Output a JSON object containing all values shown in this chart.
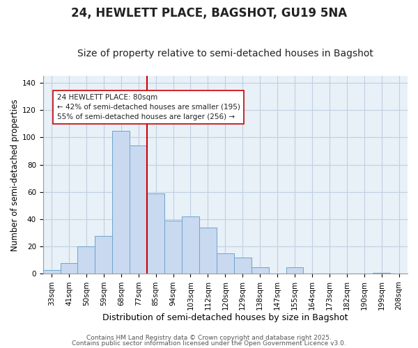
{
  "title": "24, HEWLETT PLACE, BAGSHOT, GU19 5NA",
  "subtitle": "Size of property relative to semi-detached houses in Bagshot",
  "xlabel": "Distribution of semi-detached houses by size in Bagshot",
  "ylabel": "Number of semi-detached properties",
  "categories": [
    "33sqm",
    "41sqm",
    "50sqm",
    "59sqm",
    "68sqm",
    "77sqm",
    "85sqm",
    "94sqm",
    "103sqm",
    "112sqm",
    "120sqm",
    "129sqm",
    "138sqm",
    "147sqm",
    "155sqm",
    "164sqm",
    "173sqm",
    "182sqm",
    "190sqm",
    "199sqm",
    "208sqm"
  ],
  "values": [
    3,
    8,
    20,
    28,
    105,
    94,
    59,
    39,
    42,
    34,
    15,
    12,
    5,
    0,
    5,
    0,
    0,
    0,
    0,
    1,
    0
  ],
  "bar_color": "#c8d9f0",
  "bar_edgecolor": "#6ea4cc",
  "plot_bg_color": "#e8f0f8",
  "fig_bg_color": "#ffffff",
  "grid_color": "#c0cfe0",
  "vline_x": 5.5,
  "vline_color": "#cc0000",
  "annotation_title": "24 HEWLETT PLACE: 80sqm",
  "annotation_line1": "← 42% of semi-detached houses are smaller (195)",
  "annotation_line2": "55% of semi-detached houses are larger (256) →",
  "annotation_box_facecolor": "#ffffff",
  "annotation_box_edgecolor": "#cc0000",
  "ylim": [
    0,
    145
  ],
  "yticks": [
    0,
    20,
    40,
    60,
    80,
    100,
    120,
    140
  ],
  "footer1": "Contains HM Land Registry data © Crown copyright and database right 2025.",
  "footer2": "Contains public sector information licensed under the Open Government Licence v3.0.",
  "title_fontsize": 12,
  "subtitle_fontsize": 10,
  "xlabel_fontsize": 9,
  "ylabel_fontsize": 8.5,
  "tick_fontsize": 7.5,
  "annot_fontsize": 7.5,
  "footer_fontsize": 6.5
}
